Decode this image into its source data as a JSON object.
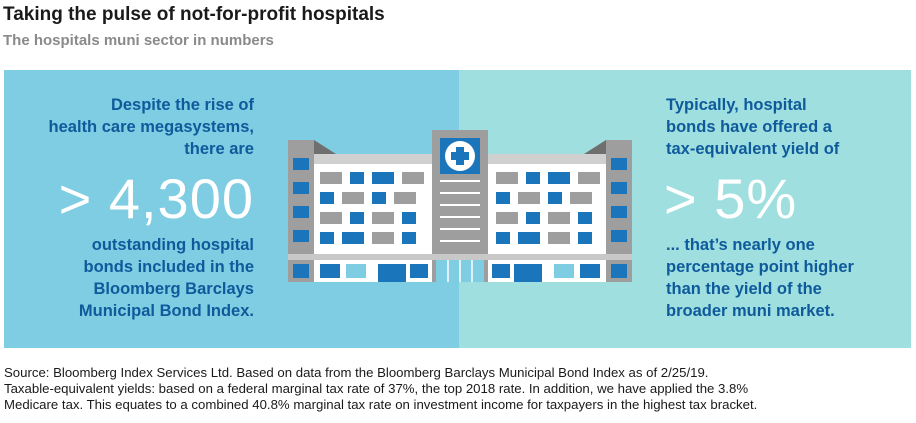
{
  "header": {
    "title": "Taking the pulse of not-for-profit hospitals",
    "subtitle": "The hospitals muni sector in numbers"
  },
  "left_panel": {
    "intro_lines": [
      "Despite the rise of",
      "health care megasystems,",
      "there are"
    ],
    "big_number": "> 4,300",
    "detail_lines": [
      "outstanding hospital",
      "bonds included in the",
      "Bloomberg Barclays",
      "Municipal Bond Index."
    ]
  },
  "right_panel": {
    "intro_lines": [
      "Typically, hospital",
      "bonds have offered a",
      "tax-equivalent yield of"
    ],
    "big_number": "> 5%",
    "detail_lines": [
      "... that’s nearly one",
      "percentage point higher",
      "than the yield of the",
      "broader muni market."
    ]
  },
  "illustration": {
    "icon": "hospital-building-icon",
    "sign_icon": "medical-cross-icon"
  },
  "footnote": {
    "lines": [
      "Source: Bloomberg Index Services Ltd. Based on data from the Bloomberg Barclays Municipal Bond Index as of 2/25/19.",
      "Taxable-equivalent yields: based on a federal marginal tax rate of 37%, the top 2018 rate. In addition, we have applied the 3.8%",
      "Medicare tax. This equates to a combined 40.8% marginal tax rate on investment income for taxpayers in the highest tax bracket."
    ]
  },
  "colors": {
    "left_panel_bg": "#7fcde3",
    "right_panel_bg": "#9fdfdf",
    "text_blue": "#0e5a9b",
    "building_blue": "#1b75bb",
    "building_gray": "#9e9e9e"
  }
}
